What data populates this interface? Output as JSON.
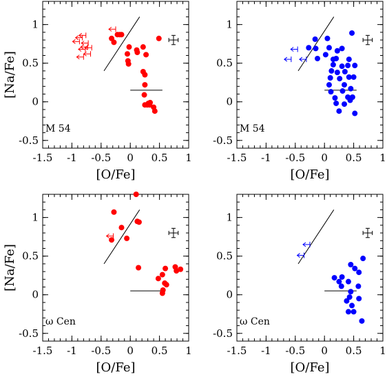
{
  "chart_data": [
    {
      "type": "scatter",
      "panel_label": "M 54",
      "xlabel": "[O/Fe]",
      "ylabel": "[Na/Fe]",
      "xlim": [
        -1.5,
        1.0
      ],
      "ylim": [
        -0.6,
        1.3
      ],
      "xticks": [
        "-1.5",
        "-1",
        "-0.5",
        "0",
        "0.5",
        "1"
      ],
      "yticks": [
        "-0.5",
        "0",
        "0.5",
        "1"
      ],
      "color": "#ff0000",
      "points": [
        {
          "x": -0.18,
          "y": 0.87
        },
        {
          "x": -0.15,
          "y": 0.87
        },
        {
          "x": -0.22,
          "y": 0.87
        },
        {
          "x": -0.32,
          "y": 0.82
        },
        {
          "x": -0.28,
          "y": 0.77
        },
        {
          "x": -0.02,
          "y": 0.71
        },
        {
          "x": -0.05,
          "y": 0.62
        },
        {
          "x": -0.04,
          "y": 0.53
        },
        {
          "x": -0.03,
          "y": 0.49
        },
        {
          "x": 0.11,
          "y": 0.67
        },
        {
          "x": 0.12,
          "y": 0.64
        },
        {
          "x": 0.22,
          "y": 0.71
        },
        {
          "x": 0.27,
          "y": 0.61
        },
        {
          "x": 0.22,
          "y": 0.39
        },
        {
          "x": 0.25,
          "y": 0.35
        },
        {
          "x": 0.25,
          "y": 0.22
        },
        {
          "x": 0.24,
          "y": 0.09
        },
        {
          "x": 0.25,
          "y": -0.04
        },
        {
          "x": 0.29,
          "y": -0.04
        },
        {
          "x": 0.33,
          "y": -0.04
        },
        {
          "x": 0.4,
          "y": -0.07
        },
        {
          "x": 0.42,
          "y": -0.12
        },
        {
          "x": 0.34,
          "y": -0.01
        },
        {
          "x": 0.31,
          "y": -0.02
        },
        {
          "x": 0.49,
          "y": 0.82
        }
      ],
      "upper_limits": [
        {
          "x": -0.76,
          "y": 0.86
        },
        {
          "x": -0.82,
          "y": 0.83
        },
        {
          "x": -0.87,
          "y": 0.78
        },
        {
          "x": -0.72,
          "y": 0.76
        },
        {
          "x": -0.73,
          "y": 0.71
        },
        {
          "x": -0.77,
          "y": 0.68
        },
        {
          "x": -0.8,
          "y": 0.58
        },
        {
          "x": -0.68,
          "y": 0.62
        },
        {
          "x": -0.66,
          "y": 0.7
        },
        {
          "x": -0.25,
          "y": 0.94
        }
      ],
      "diagonal_line": [
        [
          -0.45,
          0.4
        ],
        [
          0.16,
          1.1
        ]
      ],
      "horizontal_line": [
        [
          0.0,
          0.15
        ],
        [
          0.55,
          0.15
        ]
      ],
      "error_bar": {
        "x": 0.74,
        "y": 0.8,
        "dx": 0.08,
        "dy": 0.06
      }
    },
    {
      "type": "scatter",
      "panel_label": "M 54",
      "xlabel": "[O/Fe]",
      "ylabel": "",
      "xlim": [
        -1.5,
        1.0
      ],
      "ylim": [
        -0.6,
        1.3
      ],
      "xticks": [
        "-1.5",
        "-1",
        "-0.5",
        "0",
        "0.5",
        "1"
      ],
      "yticks": [
        "-0.5",
        "0",
        "0.5",
        "1"
      ],
      "color": "#0000ff",
      "points": [
        {
          "x": -0.16,
          "y": 0.81
        },
        {
          "x": 0.05,
          "y": 0.82
        },
        {
          "x": 0.47,
          "y": 0.89
        },
        {
          "x": -0.27,
          "y": 0.7
        },
        {
          "x": -0.15,
          "y": 0.69
        },
        {
          "x": 0.08,
          "y": 0.7
        },
        {
          "x": 0.3,
          "y": 0.69
        },
        {
          "x": 0.22,
          "y": 0.66
        },
        {
          "x": 0.02,
          "y": 0.61
        },
        {
          "x": -0.12,
          "y": 0.56
        },
        {
          "x": 0.15,
          "y": 0.55
        },
        {
          "x": 0.2,
          "y": 0.56
        },
        {
          "x": 0.42,
          "y": 0.55
        },
        {
          "x": 0.15,
          "y": 0.48
        },
        {
          "x": 0.3,
          "y": 0.46
        },
        {
          "x": 0.4,
          "y": 0.47
        },
        {
          "x": 0.52,
          "y": 0.47
        },
        {
          "x": 0.12,
          "y": 0.4
        },
        {
          "x": 0.22,
          "y": 0.38
        },
        {
          "x": 0.35,
          "y": 0.39
        },
        {
          "x": 0.1,
          "y": 0.31
        },
        {
          "x": 0.26,
          "y": 0.3
        },
        {
          "x": 0.42,
          "y": 0.32
        },
        {
          "x": 0.5,
          "y": 0.32
        },
        {
          "x": 0.08,
          "y": 0.22
        },
        {
          "x": 0.34,
          "y": 0.22
        },
        {
          "x": 0.45,
          "y": 0.17
        },
        {
          "x": 0.11,
          "y": 0.13
        },
        {
          "x": 0.31,
          "y": 0.14
        },
        {
          "x": 0.18,
          "y": 0.05
        },
        {
          "x": 0.4,
          "y": 0.06
        },
        {
          "x": 0.48,
          "y": 0.06
        },
        {
          "x": 0.2,
          "y": -0.02
        },
        {
          "x": 0.34,
          "y": -0.03
        },
        {
          "x": 0.44,
          "y": 0.02
        },
        {
          "x": 0.25,
          "y": -0.12
        },
        {
          "x": 0.52,
          "y": -0.15
        }
      ],
      "upper_limits": [
        {
          "x": -0.46,
          "y": 0.68
        },
        {
          "x": -0.57,
          "y": 0.55
        },
        {
          "x": -0.31,
          "y": 0.55
        }
      ],
      "diagonal_line": [
        [
          -0.45,
          0.4
        ],
        [
          0.16,
          1.1
        ]
      ],
      "horizontal_line": [
        [
          0.0,
          0.15
        ],
        [
          0.55,
          0.15
        ]
      ],
      "error_bar": {
        "x": 0.74,
        "y": 0.8,
        "dx": 0.08,
        "dy": 0.06
      }
    },
    {
      "type": "scatter",
      "panel_label": "ω Cen",
      "xlabel": "[O/Fe]",
      "ylabel": "[Na/Fe]",
      "xlim": [
        -1.5,
        1.0
      ],
      "ylim": [
        -0.6,
        1.3
      ],
      "xticks": [
        "-1.5",
        "-1",
        "-0.5",
        "0",
        "0.5",
        "1"
      ],
      "yticks": [
        "-0.5",
        "0",
        "0.5",
        "1"
      ],
      "color": "#ff0000",
      "points": [
        {
          "x": 0.1,
          "y": 1.3
        },
        {
          "x": -0.28,
          "y": 1.07
        },
        {
          "x": 0.12,
          "y": 0.95
        },
        {
          "x": 0.15,
          "y": 0.94
        },
        {
          "x": -0.15,
          "y": 0.87
        },
        {
          "x": -0.32,
          "y": 0.71
        },
        {
          "x": -0.06,
          "y": 0.73
        },
        {
          "x": 0.14,
          "y": 0.35
        },
        {
          "x": 0.6,
          "y": 0.34
        },
        {
          "x": 0.55,
          "y": 0.26
        },
        {
          "x": 0.77,
          "y": 0.36
        },
        {
          "x": 0.86,
          "y": 0.33
        },
        {
          "x": 0.79,
          "y": 0.31
        },
        {
          "x": 0.48,
          "y": 0.21
        },
        {
          "x": 0.59,
          "y": 0.15
        },
        {
          "x": 0.62,
          "y": 0.13
        },
        {
          "x": 0.56,
          "y": 0.06
        },
        {
          "x": 0.55,
          "y": 0.02
        }
      ],
      "upper_limits": [
        {
          "x": -0.29,
          "y": 0.76
        }
      ],
      "diagonal_line": [
        [
          -0.45,
          0.4
        ],
        [
          0.16,
          1.1
        ]
      ],
      "horizontal_line": [
        [
          0.0,
          0.05
        ],
        [
          0.55,
          0.05
        ]
      ],
      "error_bar": {
        "x": 0.74,
        "y": 0.8,
        "dx": 0.08,
        "dy": 0.06
      }
    },
    {
      "type": "scatter",
      "panel_label": "ω Cen",
      "xlabel": "[O/Fe]",
      "ylabel": "",
      "xlim": [
        -1.5,
        1.0
      ],
      "ylim": [
        -0.6,
        1.3
      ],
      "xticks": [
        "-1.5",
        "-1",
        "-0.5",
        "0",
        "0.5",
        "1"
      ],
      "yticks": [
        "-0.5",
        "0",
        "0.5",
        "1"
      ],
      "color": "#0000ff",
      "points": [
        {
          "x": 0.66,
          "y": 0.47
        },
        {
          "x": 0.45,
          "y": 0.39
        },
        {
          "x": 0.52,
          "y": 0.34
        },
        {
          "x": 0.59,
          "y": 0.29
        },
        {
          "x": 0.3,
          "y": 0.23
        },
        {
          "x": 0.17,
          "y": 0.22
        },
        {
          "x": 0.25,
          "y": 0.17
        },
        {
          "x": 0.41,
          "y": 0.17
        },
        {
          "x": 0.58,
          "y": 0.11
        },
        {
          "x": 0.29,
          "y": 0.11
        },
        {
          "x": 0.45,
          "y": 0.04
        },
        {
          "x": 0.43,
          "y": -0.03
        },
        {
          "x": 0.59,
          "y": -0.05
        },
        {
          "x": 0.38,
          "y": -0.08
        },
        {
          "x": 0.47,
          "y": -0.14
        },
        {
          "x": 0.41,
          "y": -0.22
        },
        {
          "x": 0.5,
          "y": -0.22
        },
        {
          "x": 0.64,
          "y": -0.34
        }
      ],
      "upper_limits": [
        {
          "x": -0.25,
          "y": 0.65
        },
        {
          "x": -0.35,
          "y": 0.51
        }
      ],
      "diagonal_line": [
        [
          -0.45,
          0.4
        ],
        [
          0.16,
          1.1
        ]
      ],
      "horizontal_line": [
        [
          0.0,
          0.05
        ],
        [
          0.55,
          0.05
        ]
      ],
      "error_bar": {
        "x": 0.74,
        "y": 0.8,
        "dx": 0.08,
        "dy": 0.06
      }
    }
  ]
}
